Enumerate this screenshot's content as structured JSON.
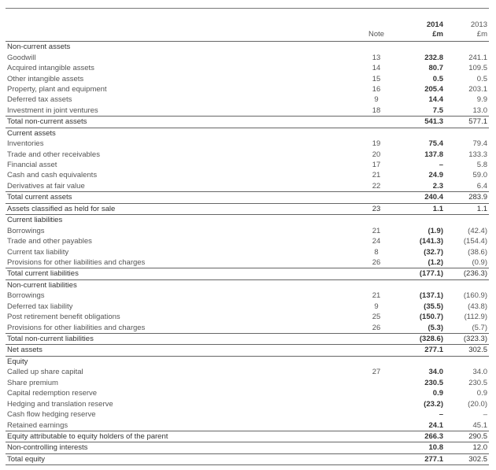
{
  "table": {
    "header": {
      "note": "Note",
      "columns": [
        {
          "year": "2014",
          "unit": "£m"
        },
        {
          "year": "2013",
          "unit": "£m"
        }
      ]
    },
    "rows": [
      {
        "label": "Non-current assets"
      },
      {
        "label": "Goodwill",
        "note": "13",
        "values": [
          "232.8",
          "241.1"
        ]
      },
      {
        "label": "Acquired intangible assets",
        "note": "14",
        "values": [
          "80.7",
          "109.5"
        ]
      },
      {
        "label": "Other intangible assets",
        "note": "15",
        "values": [
          "0.5",
          "0.5"
        ]
      },
      {
        "label": "Property, plant and equipment",
        "note": "16",
        "values": [
          "205.4",
          "203.1"
        ]
      },
      {
        "label": "Deferred tax assets",
        "note": "9",
        "values": [
          "14.4",
          "9.9"
        ]
      },
      {
        "label": "Investment in joint ventures",
        "note": "18",
        "values": [
          "7.5",
          "13.0"
        ]
      },
      {
        "label": "Total non-current assets",
        "values": [
          "541.3",
          "577.1"
        ]
      },
      {
        "label": "Current assets"
      },
      {
        "label": "Inventories",
        "note": "19",
        "values": [
          "75.4",
          "79.4"
        ]
      },
      {
        "label": "Trade and other receivables",
        "note": "20",
        "values": [
          "137.8",
          "133.3"
        ]
      },
      {
        "label": "Financial asset",
        "note": "17",
        "values": [
          "–",
          "5.8"
        ]
      },
      {
        "label": "Cash and cash equivalents",
        "note": "21",
        "values": [
          "24.9",
          "59.0"
        ]
      },
      {
        "label": "Derivatives at fair value",
        "note": "22",
        "values": [
          "2.3",
          "6.4"
        ]
      },
      {
        "label": "Total current assets",
        "values": [
          "240.4",
          "283.9"
        ]
      },
      {
        "label": "Assets classified as held for sale",
        "note": "23",
        "values": [
          "1.1",
          "1.1"
        ]
      },
      {
        "label": "Current liabilities"
      },
      {
        "label": "Borrowings",
        "note": "21",
        "values": [
          "(1.9)",
          "(42.4)"
        ]
      },
      {
        "label": "Trade and other payables",
        "note": "24",
        "values": [
          "(141.3)",
          "(154.4)"
        ]
      },
      {
        "label": "Current tax liability",
        "note": "8",
        "values": [
          "(32.7)",
          "(38.6)"
        ]
      },
      {
        "label": "Provisions for other liabilities and charges",
        "note": "26",
        "values": [
          "(1.2)",
          "(0.9)"
        ]
      },
      {
        "label": "Total current liabilities",
        "values": [
          "(177.1)",
          "(236.3)"
        ]
      },
      {
        "label": "Non-current liabilities"
      },
      {
        "label": "Borrowings",
        "note": "21",
        "values": [
          "(137.1)",
          "(160.9)"
        ]
      },
      {
        "label": "Deferred tax liability",
        "note": "9",
        "values": [
          "(35.5)",
          "(43.8)"
        ]
      },
      {
        "label": "Post retirement benefit obligations",
        "note": "25",
        "values": [
          "(150.7)",
          "(112.9)"
        ]
      },
      {
        "label": "Provisions for other liabilities and charges",
        "note": "26",
        "values": [
          "(5.3)",
          "(5.7)"
        ]
      },
      {
        "label": "Total non-current liabilities",
        "values": [
          "(328.6)",
          "(323.3)"
        ]
      },
      {
        "label": "Net assets",
        "values": [
          "277.1",
          "302.5"
        ]
      },
      {
        "label": "Equity"
      },
      {
        "label": "Called up share capital",
        "note": "27",
        "values": [
          "34.0",
          "34.0"
        ]
      },
      {
        "label": "Share premium",
        "values": [
          "230.5",
          "230.5"
        ]
      },
      {
        "label": "Capital redemption reserve",
        "values": [
          "0.9",
          "0.9"
        ]
      },
      {
        "label": "Hedging and translation reserve",
        "values": [
          "(23.2)",
          "(20.0)"
        ]
      },
      {
        "label": "Cash flow hedging reserve",
        "values": [
          "–",
          "–"
        ]
      },
      {
        "label": "Retained earnings",
        "values": [
          "24.1",
          "45.1"
        ]
      },
      {
        "label": "Equity attributable to equity holders of the parent",
        "values": [
          "266.3",
          "290.5"
        ]
      },
      {
        "label": "Non-controlling interests",
        "values": [
          "10.8",
          "12.0"
        ]
      },
      {
        "label": "Total equity",
        "values": [
          "277.1",
          "302.5"
        ]
      }
    ]
  }
}
